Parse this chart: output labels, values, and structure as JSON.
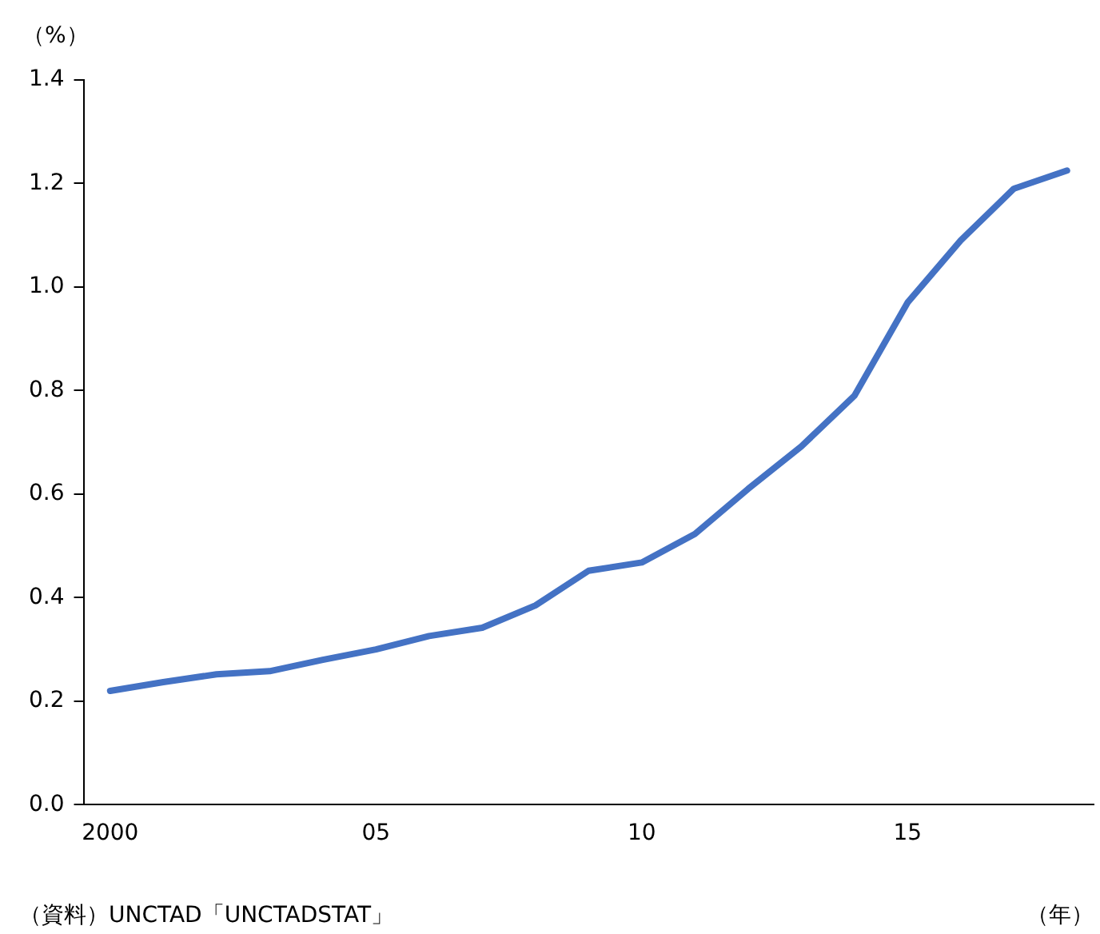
{
  "chart_data": {
    "type": "line",
    "categories": [
      "2000",
      null,
      null,
      null,
      null,
      "05",
      null,
      null,
      null,
      null,
      "10",
      null,
      null,
      null,
      null,
      "15",
      null,
      null,
      null
    ],
    "series": [
      {
        "color": "#4472c4",
        "values": [
          0.22,
          0.237,
          0.252,
          0.258,
          0.28,
          0.3,
          0.326,
          0.342,
          0.385,
          0.452,
          0.468,
          0.523,
          0.61,
          0.692,
          0.79,
          0.97,
          1.09,
          1.19,
          1.225
        ]
      }
    ],
    "ylabel": "（%）",
    "xlabel": "（年）",
    "annotations": [
      "（資料）UNCTAD「UNCTADSTAT」"
    ],
    "ylim": [
      0,
      1.4
    ],
    "yticks": [
      {
        "value": 0,
        "label": "0.0"
      },
      0.2,
      0.4,
      0.6,
      0.8,
      {
        "value": 1,
        "label": "1.0"
      },
      1.2,
      1.4
    ],
    "grid": false,
    "legend": false,
    "marker": "none",
    "line_style": "solid"
  }
}
